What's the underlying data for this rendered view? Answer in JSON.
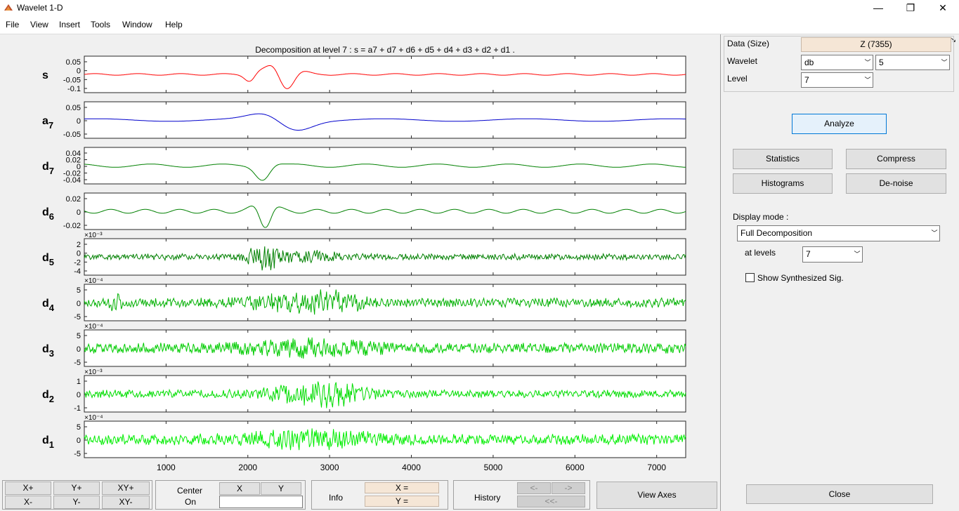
{
  "window": {
    "title": "Wavelet 1-D",
    "minimize": "—",
    "restore": "❐",
    "close": "✕"
  },
  "menu": [
    "File",
    "View",
    "Insert",
    "Tools",
    "Window",
    "Help"
  ],
  "plot": {
    "title": "Decomposition at level 7 : s = a7 + d7 + d6 + d5 + d4 + d3 + d2 + d1 .",
    "x_ticks": [
      "1000",
      "2000",
      "3000",
      "4000",
      "5000",
      "6000",
      "7000"
    ],
    "rows": [
      {
        "label": "s",
        "sub": "",
        "color": "#ff0000",
        "ticks": [
          "0.05",
          "0",
          "-0.05",
          "-0.1"
        ],
        "exp": ""
      },
      {
        "label": "a",
        "sub": "7",
        "color": "#0000cc",
        "ticks": [
          "0.05",
          "0",
          "-0.05"
        ],
        "exp": ""
      },
      {
        "label": "d",
        "sub": "7",
        "color": "#008000",
        "ticks": [
          "0.04",
          "0.02",
          "0",
          "-0.02",
          "-0.04"
        ],
        "exp": ""
      },
      {
        "label": "d",
        "sub": "6",
        "color": "#008000",
        "ticks": [
          "0.02",
          "0",
          "-0.02"
        ],
        "exp": ""
      },
      {
        "label": "d",
        "sub": "5",
        "color": "#008000",
        "ticks": [
          "2",
          "0",
          "-2",
          "-4"
        ],
        "exp": "×10⁻³"
      },
      {
        "label": "d",
        "sub": "4",
        "color": "#00b000",
        "ticks": [
          "5",
          "0",
          "-5"
        ],
        "exp": "×10⁻⁴"
      },
      {
        "label": "d",
        "sub": "3",
        "color": "#00cc00",
        "ticks": [
          "5",
          "0",
          "-5"
        ],
        "exp": "×10⁻⁴"
      },
      {
        "label": "d",
        "sub": "2",
        "color": "#00dd00",
        "ticks": [
          "1",
          "0",
          "-1"
        ],
        "exp": "×10⁻³"
      },
      {
        "label": "d",
        "sub": "1",
        "color": "#00ee00",
        "ticks": [
          "5",
          "0",
          "-5"
        ],
        "exp": "×10⁻⁴"
      }
    ]
  },
  "chart_data": {
    "type": "line",
    "xlim": [
      0,
      7355
    ],
    "x_ticks": [
      1000,
      2000,
      3000,
      4000,
      5000,
      6000,
      7000
    ],
    "series": [
      {
        "name": "s",
        "ylim": [
          -0.1,
          0.07
        ]
      },
      {
        "name": "a7",
        "ylim": [
          -0.06,
          0.09
        ]
      },
      {
        "name": "d7",
        "ylim": [
          -0.05,
          0.05
        ]
      },
      {
        "name": "d6",
        "ylim": [
          -0.025,
          0.025
        ]
      },
      {
        "name": "d5",
        "ylim": [
          -0.004,
          0.003
        ]
      },
      {
        "name": "d4",
        "ylim": [
          -0.0007,
          0.0007
        ]
      },
      {
        "name": "d3",
        "ylim": [
          -0.0007,
          0.0007
        ]
      },
      {
        "name": "d2",
        "ylim": [
          -0.0013,
          0.0013
        ]
      },
      {
        "name": "d1",
        "ylim": [
          -0.0006,
          0.0006
        ]
      }
    ]
  },
  "panel": {
    "data_label": "Data  (Size)",
    "data_value": "Z  (7355)",
    "wavelet_label": "Wavelet",
    "wavelet_family": "db",
    "wavelet_order": "5",
    "level_label": "Level",
    "level_value": "7",
    "analyze": "Analyze",
    "statistics": "Statistics",
    "compress": "Compress",
    "histograms": "Histograms",
    "denoise": "De-noise",
    "display_mode_label": "Display mode :",
    "display_mode_value": "Full Decomposition",
    "at_levels_label": "at levels",
    "at_levels_value": "7",
    "show_synth": "Show Synthesized Sig.",
    "close": "Close"
  },
  "bottom": {
    "xplus": "X+",
    "yplus": "Y+",
    "xyplus": "XY+",
    "xminus": "X-",
    "yminus": "Y-",
    "xyminus": "XY-",
    "center_on": "Center",
    "center_on2": "On",
    "x_btn": "X",
    "y_btn": "Y",
    "info": "Info",
    "x_eq": "X =",
    "y_eq": "Y =",
    "history": "History",
    "hist_back": "<-",
    "hist_fwd": "->",
    "hist_first": "<<-",
    "view_axes": "View Axes"
  }
}
